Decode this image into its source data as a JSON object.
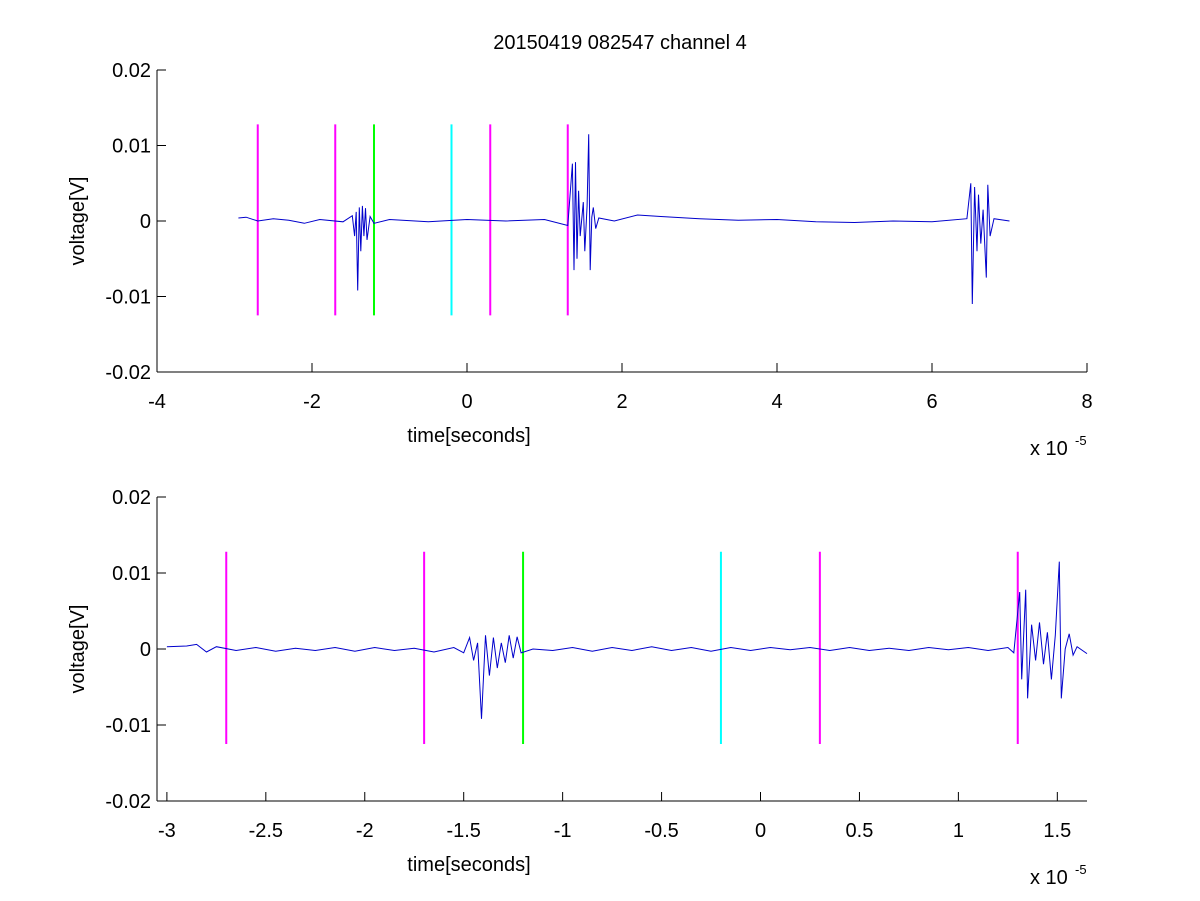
{
  "figure": {
    "title": "20150419 082547 channel 4",
    "background": "#ffffff"
  },
  "chart_data": [
    {
      "type": "line",
      "title": "20150419 082547 channel 4",
      "xlabel": "time[seconds]",
      "ylabel": "voltage[V]",
      "x_exponent_label": "x 10",
      "x_exponent": "-5",
      "xlim": [
        -4,
        8
      ],
      "ylim": [
        -0.02,
        0.02
      ],
      "x_ticks": [
        -4,
        -2,
        0,
        2,
        4,
        6,
        8
      ],
      "x_tick_labels": [
        "-4",
        "-2",
        "0",
        "2",
        "4",
        "6",
        "8"
      ],
      "y_ticks": [
        0.02,
        0.01,
        0,
        -0.01,
        -0.02
      ],
      "y_tick_labels": [
        "0.02",
        "0.01",
        "0",
        "-0.01",
        "-0.02"
      ],
      "grid": false,
      "markers": [
        {
          "x": -2.7,
          "ymin": -0.0125,
          "ymax": 0.0128,
          "color": "#ff00ff"
        },
        {
          "x": -1.7,
          "ymin": -0.0125,
          "ymax": 0.0128,
          "color": "#ff00ff"
        },
        {
          "x": -1.2,
          "ymin": -0.0125,
          "ymax": 0.0128,
          "color": "#00ff00"
        },
        {
          "x": -0.2,
          "ymin": -0.0125,
          "ymax": 0.0128,
          "color": "#00ffff"
        },
        {
          "x": 0.3,
          "ymin": -0.0125,
          "ymax": 0.0128,
          "color": "#ff00ff"
        },
        {
          "x": 1.3,
          "ymin": -0.0125,
          "ymax": 0.0128,
          "color": "#ff00ff"
        }
      ],
      "series": [
        {
          "color": "#0000cc",
          "points": [
            [
              -2.95,
              0.0004
            ],
            [
              -2.85,
              0.0005
            ],
            [
              -2.7,
              0.0
            ],
            [
              -2.5,
              0.0003
            ],
            [
              -2.3,
              0.0001
            ],
            [
              -2.1,
              -0.0003
            ],
            [
              -1.9,
              0.0002
            ],
            [
              -1.6,
              -0.0001
            ],
            [
              -1.48,
              0.0007
            ],
            [
              -1.45,
              -0.002
            ],
            [
              -1.43,
              0.0012
            ],
            [
              -1.41,
              -0.0092
            ],
            [
              -1.39,
              0.0018
            ],
            [
              -1.37,
              -0.004
            ],
            [
              -1.35,
              0.002
            ],
            [
              -1.33,
              -0.002
            ],
            [
              -1.31,
              0.0017
            ],
            [
              -1.29,
              -0.0025
            ],
            [
              -1.25,
              0.0006
            ],
            [
              -1.2,
              -0.0003
            ],
            [
              -1.0,
              0.0002
            ],
            [
              -0.5,
              -0.0001
            ],
            [
              0.0,
              0.0002
            ],
            [
              0.5,
              0.0
            ],
            [
              1.0,
              0.0002
            ],
            [
              1.3,
              -0.0006
            ],
            [
              1.36,
              0.0076
            ],
            [
              1.38,
              -0.0065
            ],
            [
              1.4,
              0.0078
            ],
            [
              1.42,
              -0.005
            ],
            [
              1.44,
              0.004
            ],
            [
              1.46,
              -0.002
            ],
            [
              1.5,
              0.0025
            ],
            [
              1.52,
              -0.004
            ],
            [
              1.55,
              0.002
            ],
            [
              1.57,
              0.0115
            ],
            [
              1.59,
              -0.0065
            ],
            [
              1.61,
              0.0005
            ],
            [
              1.63,
              0.0018
            ],
            [
              1.66,
              -0.001
            ],
            [
              1.7,
              0.0004
            ],
            [
              1.9,
              0.0
            ],
            [
              2.2,
              0.0008
            ],
            [
              2.5,
              0.0006
            ],
            [
              3.0,
              0.0003
            ],
            [
              3.5,
              0.0001
            ],
            [
              4.0,
              0.0002
            ],
            [
              4.5,
              -0.0001
            ],
            [
              5.0,
              -0.0002
            ],
            [
              5.5,
              0.0
            ],
            [
              6.0,
              -0.0001
            ],
            [
              6.45,
              0.0003
            ],
            [
              6.5,
              0.005
            ],
            [
              6.52,
              -0.011
            ],
            [
              6.55,
              0.0045
            ],
            [
              6.58,
              -0.004
            ],
            [
              6.6,
              0.0035
            ],
            [
              6.63,
              -0.003
            ],
            [
              6.66,
              0.0015
            ],
            [
              6.7,
              -0.0075
            ],
            [
              6.72,
              0.0048
            ],
            [
              6.75,
              -0.002
            ],
            [
              6.8,
              0.0003
            ],
            [
              7.0,
              0.0
            ]
          ]
        }
      ]
    },
    {
      "type": "line",
      "title": "",
      "xlabel": "time[seconds]",
      "ylabel": "voltage[V]",
      "x_exponent_label": "x 10",
      "x_exponent": "-5",
      "xlim": [
        -3.0,
        1.7
      ],
      "ylim": [
        -0.02,
        0.02
      ],
      "x_ticks": [
        -2.95,
        -2.45,
        -1.95,
        -1.45,
        -0.95,
        -0.45,
        0.05,
        0.55,
        1.05,
        1.55
      ],
      "x_tick_labels": [
        "-3",
        "-2.5",
        "-2",
        "-1.5",
        "-1",
        "-0.5",
        "0",
        "0.5",
        "1",
        "1.5"
      ],
      "y_ticks": [
        0.02,
        0.01,
        0,
        -0.01,
        -0.02
      ],
      "y_tick_labels": [
        "0.02",
        "0.01",
        "0",
        "-0.01",
        "-0.02"
      ],
      "grid": false,
      "markers": [
        {
          "x": -2.65,
          "ymin": -0.0125,
          "ymax": 0.0128,
          "color": "#ff00ff"
        },
        {
          "x": -1.65,
          "ymin": -0.0125,
          "ymax": 0.0128,
          "color": "#ff00ff"
        },
        {
          "x": -1.15,
          "ymin": -0.0125,
          "ymax": 0.0128,
          "color": "#00ff00"
        },
        {
          "x": -0.15,
          "ymin": -0.0125,
          "ymax": 0.0128,
          "color": "#00ffff"
        },
        {
          "x": 0.35,
          "ymin": -0.0125,
          "ymax": 0.0128,
          "color": "#ff00ff"
        },
        {
          "x": 1.35,
          "ymin": -0.0125,
          "ymax": 0.0128,
          "color": "#ff00ff"
        }
      ],
      "series": [
        {
          "color": "#0000cc",
          "points": [
            [
              -2.95,
              0.0003
            ],
            [
              -2.85,
              0.0004
            ],
            [
              -2.8,
              0.0006
            ],
            [
              -2.75,
              -0.0004
            ],
            [
              -2.7,
              0.0003
            ],
            [
              -2.6,
              -0.0002
            ],
            [
              -2.5,
              0.0002
            ],
            [
              -2.4,
              -0.0003
            ],
            [
              -2.3,
              0.0001
            ],
            [
              -2.2,
              -0.0002
            ],
            [
              -2.1,
              0.0002
            ],
            [
              -2.0,
              -0.0003
            ],
            [
              -1.9,
              0.0002
            ],
            [
              -1.8,
              -0.0002
            ],
            [
              -1.7,
              0.0001
            ],
            [
              -1.6,
              -0.0004
            ],
            [
              -1.5,
              0.0002
            ],
            [
              -1.45,
              -0.0005
            ],
            [
              -1.42,
              0.0015
            ],
            [
              -1.4,
              -0.0015
            ],
            [
              -1.38,
              0.0008
            ],
            [
              -1.36,
              -0.0092
            ],
            [
              -1.34,
              0.0018
            ],
            [
              -1.32,
              -0.0035
            ],
            [
              -1.3,
              0.0015
            ],
            [
              -1.28,
              -0.0025
            ],
            [
              -1.26,
              0.0008
            ],
            [
              -1.24,
              -0.0018
            ],
            [
              -1.22,
              0.0018
            ],
            [
              -1.2,
              -0.0012
            ],
            [
              -1.18,
              0.0016
            ],
            [
              -1.16,
              -0.0005
            ],
            [
              -1.1,
              0.0
            ],
            [
              -1.0,
              -0.0002
            ],
            [
              -0.9,
              0.0002
            ],
            [
              -0.8,
              -0.0003
            ],
            [
              -0.7,
              0.0002
            ],
            [
              -0.6,
              -0.0002
            ],
            [
              -0.5,
              0.0003
            ],
            [
              -0.4,
              -0.0002
            ],
            [
              -0.3,
              0.0002
            ],
            [
              -0.2,
              -0.0003
            ],
            [
              -0.1,
              0.0002
            ],
            [
              0.0,
              -0.0002
            ],
            [
              0.1,
              0.0002
            ],
            [
              0.2,
              -0.0001
            ],
            [
              0.3,
              0.0002
            ],
            [
              0.4,
              -0.0002
            ],
            [
              0.5,
              0.0002
            ],
            [
              0.6,
              -0.0002
            ],
            [
              0.7,
              0.0001
            ],
            [
              0.8,
              -0.0002
            ],
            [
              0.9,
              0.0002
            ],
            [
              1.0,
              -0.0001
            ],
            [
              1.1,
              0.0002
            ],
            [
              1.2,
              -0.0002
            ],
            [
              1.3,
              0.0002
            ],
            [
              1.33,
              -0.0005
            ],
            [
              1.36,
              0.0075
            ],
            [
              1.37,
              -0.004
            ],
            [
              1.39,
              0.0078
            ],
            [
              1.4,
              -0.0065
            ],
            [
              1.42,
              0.0032
            ],
            [
              1.44,
              -0.0015
            ],
            [
              1.46,
              0.0035
            ],
            [
              1.48,
              -0.002
            ],
            [
              1.5,
              0.0022
            ],
            [
              1.52,
              -0.004
            ],
            [
              1.54,
              0.0018
            ],
            [
              1.56,
              0.0115
            ],
            [
              1.57,
              -0.0065
            ],
            [
              1.59,
              0.0
            ],
            [
              1.61,
              0.002
            ],
            [
              1.63,
              -0.0008
            ],
            [
              1.65,
              0.0003
            ],
            [
              1.7,
              -0.0006
            ]
          ]
        }
      ]
    }
  ]
}
